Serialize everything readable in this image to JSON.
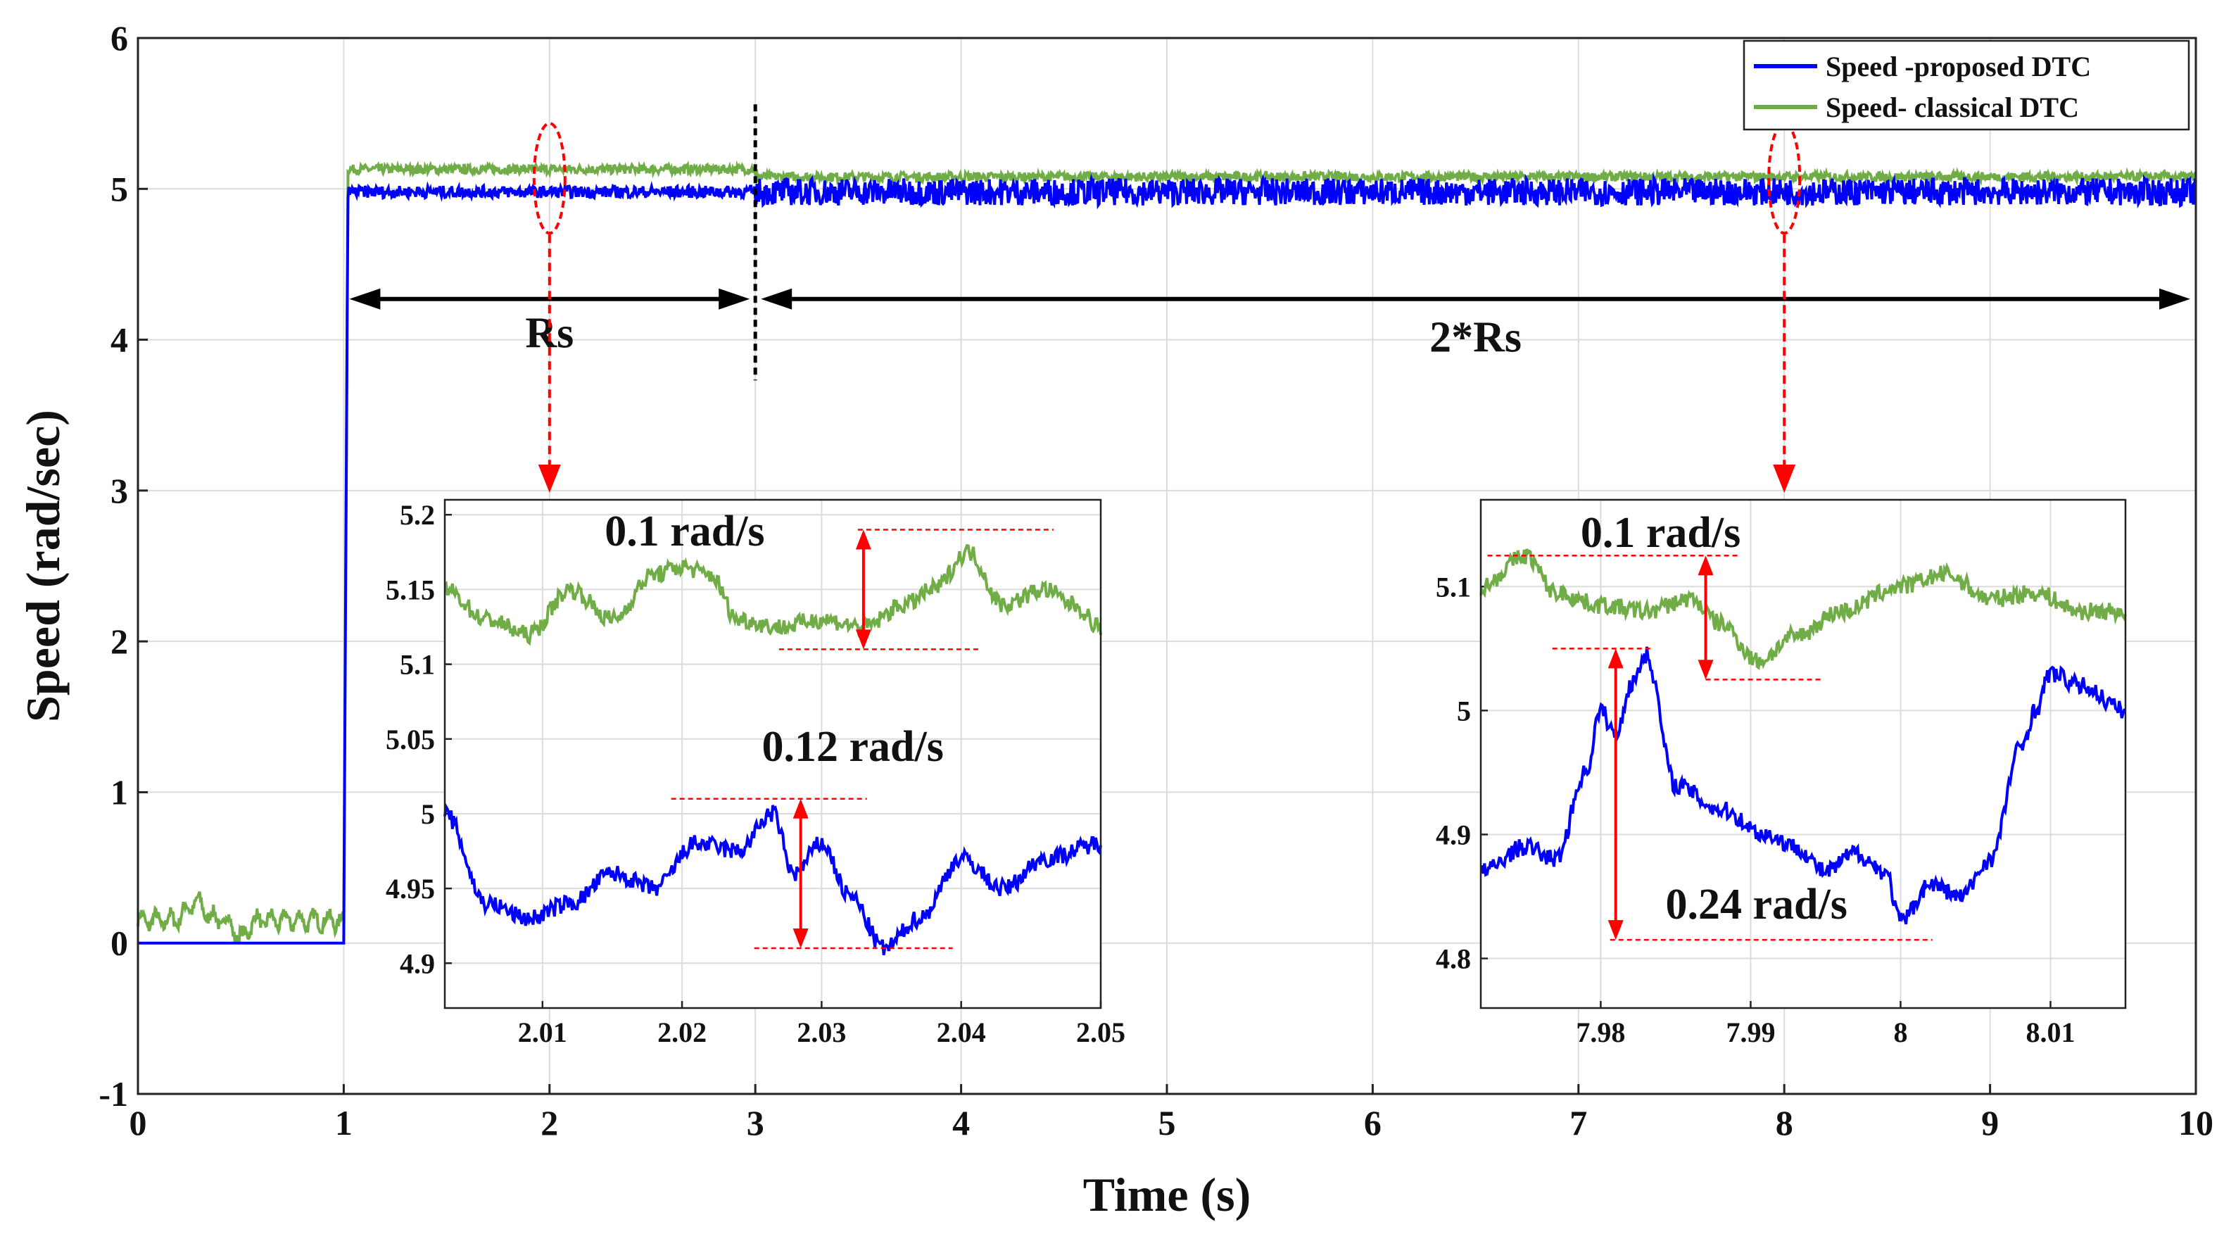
{
  "chart_data": [
    {
      "id": "main",
      "type": "line",
      "xlabel": "Time (s)",
      "ylabel": "Speed (rad/sec)",
      "xlim": [
        0,
        10
      ],
      "ylim": [
        -1,
        6
      ],
      "xticks": [
        0,
        1,
        2,
        3,
        4,
        5,
        6,
        7,
        8,
        9,
        10
      ],
      "yticks": [
        -1,
        0,
        1,
        2,
        3,
        4,
        5,
        6
      ],
      "grid": true,
      "legend_position": "top-right",
      "series": [
        {
          "name": "Speed -proposed DTC",
          "color": "#0000ff",
          "start_time": 1.0,
          "initial_value": 0.0,
          "steady_value": 4.98,
          "ripple_amplitude_before_3s": 0.04,
          "ripple_amplitude_after_3s": 0.09
        },
        {
          "name": "Speed- classical DTC",
          "color": "#70ad47",
          "start_time": 1.0,
          "initial_value": 0.15,
          "steady_value": 5.13,
          "steady_value_after_3s": 5.08,
          "ripple_amplitude_before_3s": 0.03,
          "ripple_amplitude_after_3s": 0.03
        }
      ],
      "annotations": {
        "segment_1": {
          "label": "Rs",
          "x_start": 1,
          "x_end": 3
        },
        "segment_2": {
          "label": "2*Rs",
          "x_start": 3,
          "x_end": 10
        },
        "divider_time": 3,
        "zoom_1_time": 2.0,
        "zoom_2_time": 8.0
      }
    },
    {
      "id": "inset-1",
      "type": "line",
      "xlim": [
        2.003,
        2.05
      ],
      "ylim": [
        4.87,
        5.21
      ],
      "xticks": [
        2.01,
        2.02,
        2.03,
        2.04,
        2.05
      ],
      "xtick_labels": [
        "2.01",
        "2.02",
        "2.03",
        "2.04",
        "2.05"
      ],
      "yticks": [
        4.9,
        4.95,
        5.0,
        5.05,
        5.1,
        5.15,
        5.2
      ],
      "ytick_labels": [
        "4.9",
        "4.95",
        "5",
        "5.05",
        "5.1",
        "5.15",
        "5.2"
      ],
      "series": [
        {
          "name": "Speed- classical DTC",
          "color": "#70ad47",
          "x": [
            2.003,
            2.006,
            2.009,
            2.012,
            2.015,
            2.018,
            2.02,
            2.022,
            2.024,
            2.027,
            2.03,
            2.033,
            2.036,
            2.038,
            2.0405,
            2.043,
            2.046,
            2.048,
            2.05
          ],
          "y": [
            5.15,
            5.13,
            5.12,
            5.15,
            5.13,
            5.16,
            5.165,
            5.16,
            5.13,
            5.125,
            5.13,
            5.125,
            5.14,
            5.15,
            5.175,
            5.14,
            5.15,
            5.14,
            5.125
          ]
        },
        {
          "name": "Speed -proposed DTC",
          "color": "#0000ff",
          "x": [
            2.003,
            2.006,
            2.009,
            2.012,
            2.015,
            2.018,
            2.021,
            2.024,
            2.0265,
            2.028,
            2.03,
            2.032,
            2.0345,
            2.037,
            2.04,
            2.043,
            2.046,
            2.05
          ],
          "y": [
            5.0,
            4.94,
            4.93,
            4.94,
            4.96,
            4.95,
            4.98,
            4.975,
            5.0,
            4.96,
            4.98,
            4.945,
            4.91,
            4.93,
            4.97,
            4.95,
            4.97,
            4.98
          ]
        }
      ],
      "annotations": [
        {
          "label": "0.1 rad/s",
          "x": 2.033,
          "y_low": 5.11,
          "y_high": 5.19
        },
        {
          "label": "0.12 rad/s",
          "x": 2.0285,
          "y_low": 4.91,
          "y_high": 5.01
        }
      ]
    },
    {
      "id": "inset-2",
      "type": "line",
      "xlim": [
        7.972,
        8.015
      ],
      "ylim": [
        4.76,
        5.17
      ],
      "xticks": [
        7.98,
        7.99,
        8.0,
        8.01
      ],
      "xtick_labels": [
        "7.98",
        "7.99",
        "8",
        "8.01"
      ],
      "yticks": [
        4.8,
        4.9,
        5.0,
        5.1
      ],
      "ytick_labels": [
        "4.8",
        "4.9",
        "5",
        "5.1"
      ],
      "series": [
        {
          "name": "Speed- classical DTC",
          "color": "#70ad47",
          "x": [
            7.972,
            7.975,
            7.977,
            7.98,
            7.983,
            7.986,
            7.988,
            7.9905,
            7.993,
            7.996,
            8.0,
            8.003,
            8.006,
            8.009,
            8.012,
            8.015
          ],
          "y": [
            5.1,
            5.125,
            5.095,
            5.085,
            5.08,
            5.09,
            5.07,
            5.04,
            5.06,
            5.08,
            5.1,
            5.11,
            5.09,
            5.095,
            5.08,
            5.08
          ]
        },
        {
          "name": "Speed -proposed DTC",
          "color": "#0000ff",
          "x": [
            7.972,
            7.975,
            7.977,
            7.979,
            7.98,
            7.981,
            7.982,
            7.983,
            7.985,
            7.988,
            7.991,
            7.993,
            7.995,
            7.997,
            7.999,
            8.0,
            8.002,
            8.004,
            8.006,
            8.008,
            8.009,
            8.01,
            8.012,
            8.015
          ],
          "y": [
            4.87,
            4.89,
            4.88,
            4.95,
            5.0,
            4.98,
            5.02,
            5.045,
            4.94,
            4.92,
            4.9,
            4.89,
            4.87,
            4.885,
            4.87,
            4.83,
            4.86,
            4.85,
            4.88,
            4.97,
            5.0,
            5.03,
            5.02,
            5.0
          ]
        }
      ],
      "annotations": [
        {
          "label": "0.1 rad/s",
          "x": 7.987,
          "y_low": 5.025,
          "y_high": 5.125
        },
        {
          "label": "0.24 rad/s",
          "x": 7.981,
          "y_low": 4.815,
          "y_high": 5.05
        }
      ]
    }
  ]
}
